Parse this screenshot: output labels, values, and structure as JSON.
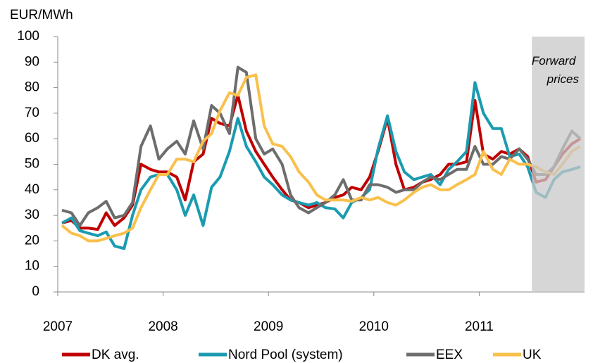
{
  "chart_data": {
    "type": "line",
    "y_label": "EUR/MWh",
    "annotation": "Forward prices",
    "shade": [
      2011.5,
      2012
    ],
    "xlim": [
      2007,
      2012
    ],
    "xticks": [
      2007,
      2008,
      2009,
      2010,
      2011
    ],
    "ylim": [
      0,
      100
    ],
    "yticks": [
      0,
      10,
      20,
      30,
      40,
      50,
      60,
      70,
      80,
      90,
      100
    ],
    "legend": "bottom",
    "x": [
      2007.04,
      2007.13,
      2007.21,
      2007.29,
      2007.38,
      2007.46,
      2007.54,
      2007.63,
      2007.71,
      2007.79,
      2007.88,
      2007.96,
      2008.04,
      2008.13,
      2008.21,
      2008.29,
      2008.38,
      2008.46,
      2008.54,
      2008.63,
      2008.71,
      2008.79,
      2008.88,
      2008.96,
      2009.04,
      2009.13,
      2009.21,
      2009.29,
      2009.38,
      2009.46,
      2009.54,
      2009.63,
      2009.71,
      2009.79,
      2009.88,
      2009.96,
      2010.04,
      2010.13,
      2010.21,
      2010.29,
      2010.38,
      2010.46,
      2010.54,
      2010.63,
      2010.71,
      2010.79,
      2010.88,
      2010.96,
      2011.04,
      2011.13,
      2011.21,
      2011.29,
      2011.38,
      2011.46,
      2011.54,
      2011.63,
      2011.71,
      2011.79,
      2011.88,
      2011.96
    ],
    "series": [
      {
        "name": "DK avg.",
        "color": "#c00000",
        "values": [
          27,
          28,
          25,
          25,
          24.5,
          31,
          26,
          29,
          34,
          50,
          48,
          47,
          47,
          45,
          36,
          51,
          54,
          68,
          66,
          65,
          77,
          63,
          55,
          50,
          45,
          40,
          36,
          35,
          33,
          34,
          35,
          37,
          38,
          41,
          40,
          45,
          55,
          68,
          50,
          40,
          41,
          43,
          44,
          46,
          50,
          50,
          51,
          75,
          54,
          52,
          55,
          54,
          56,
          53,
          43,
          44,
          49,
          54,
          58,
          60
        ]
      },
      {
        "name": "Nord Pool (system)",
        "color": "#1a9bb0",
        "values": [
          27,
          29,
          24,
          23,
          22,
          23.5,
          18,
          17,
          30,
          40,
          45,
          46,
          46,
          40,
          30,
          38,
          26,
          41,
          45,
          55,
          68,
          57,
          51,
          45,
          42,
          38,
          36,
          35,
          34,
          35,
          33,
          32.5,
          29,
          35,
          37,
          40,
          56,
          69,
          55,
          47,
          44,
          45,
          46,
          42,
          48,
          51,
          55,
          82,
          70,
          64,
          64,
          53,
          54,
          49,
          39,
          37,
          44,
          47,
          48,
          49
        ]
      },
      {
        "name": "EEX",
        "color": "#6d6d6d",
        "values": [
          32,
          31,
          26,
          31,
          33,
          35.5,
          29,
          30,
          35,
          57,
          65,
          52,
          56,
          59,
          54,
          67,
          56,
          73,
          70,
          62,
          88,
          86,
          60,
          54,
          56,
          50,
          38,
          33,
          31,
          33,
          35,
          38,
          44,
          36,
          36,
          42,
          42,
          41,
          39,
          40,
          40,
          43,
          45,
          44,
          46,
          48,
          48,
          57,
          50,
          50,
          53,
          52,
          56,
          52,
          46,
          46,
          49,
          56,
          63,
          60
        ]
      },
      {
        "name": "UK",
        "color": "#f9c04c",
        "values": [
          26,
          23,
          22,
          20,
          20,
          21,
          22,
          23,
          25,
          33,
          40,
          46,
          46,
          52,
          52,
          51,
          59,
          62,
          71,
          78,
          77,
          84,
          85,
          65,
          58,
          57,
          53,
          47,
          43,
          38,
          36,
          36,
          36,
          35.5,
          37,
          36,
          37,
          35,
          34,
          36,
          39,
          41,
          42,
          40,
          40,
          42,
          44,
          46,
          55,
          48,
          46,
          52,
          50,
          50,
          49,
          47,
          46,
          50,
          55,
          57
        ]
      }
    ]
  }
}
